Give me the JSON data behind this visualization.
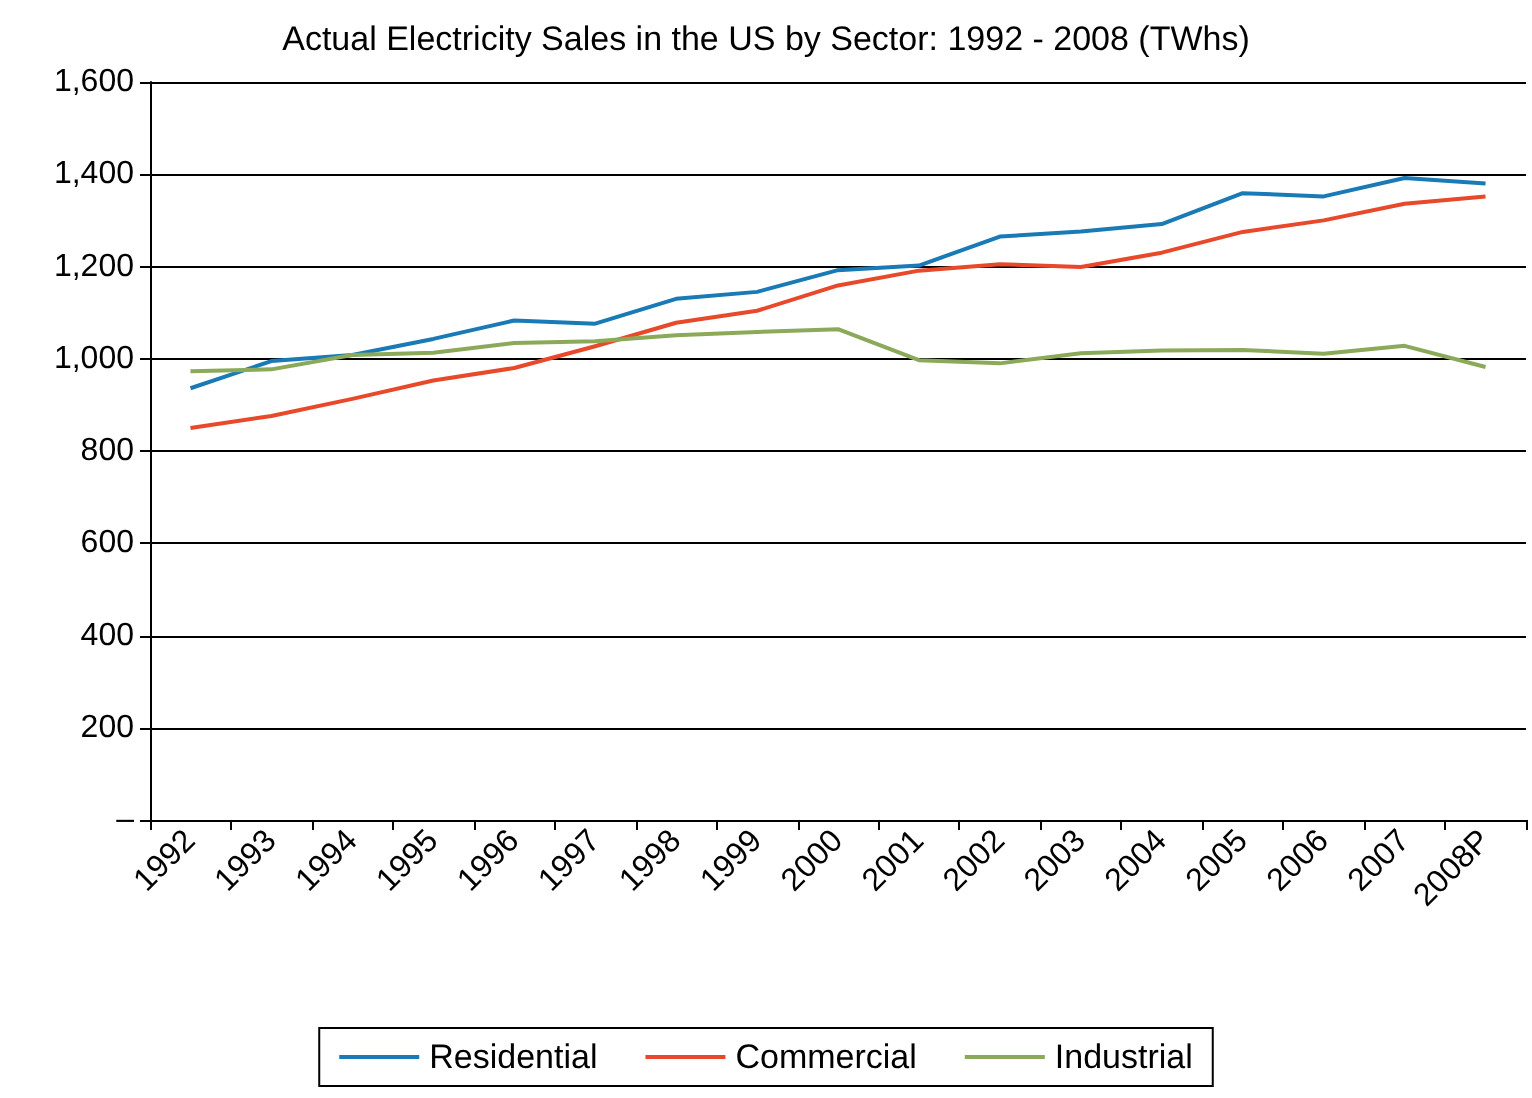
{
  "chart_data": {
    "type": "line",
    "title": "Actual Electricity Sales in the US by Sector: 1992 - 2008 (TWhs)",
    "categories": [
      "1992",
      "1993",
      "1994",
      "1995",
      "1996",
      "1997",
      "1998",
      "1999",
      "2000",
      "2001",
      "2002",
      "2003",
      "2004",
      "2005",
      "2006",
      "2007",
      "2008P"
    ],
    "series": [
      {
        "name": "Residential",
        "color": "#1a7ab5",
        "values": [
          936,
          995,
          1008,
          1043,
          1083,
          1076,
          1130,
          1145,
          1192,
          1202,
          1265,
          1276,
          1292,
          1359,
          1352,
          1392,
          1380
        ]
      },
      {
        "name": "Commercial",
        "color": "#e8492a",
        "values": [
          850,
          876,
          913,
          953,
          980,
          1027,
          1078,
          1104,
          1159,
          1191,
          1205,
          1199,
          1230,
          1275,
          1300,
          1336,
          1352
        ]
      },
      {
        "name": "Industrial",
        "color": "#8aaa5a",
        "values": [
          973,
          977,
          1008,
          1013,
          1034,
          1038,
          1051,
          1058,
          1064,
          997,
          990,
          1012,
          1018,
          1019,
          1011,
          1028,
          982
        ]
      }
    ],
    "ylim": [
      0,
      1600
    ],
    "yticks": [
      {
        "value": 0,
        "label": "–"
      },
      200,
      400,
      600,
      800,
      {
        "value": 1000,
        "label": "1,000"
      },
      {
        "value": 1200,
        "label": "1,200"
      },
      {
        "value": 1400,
        "label": "1,400"
      },
      {
        "value": 1600,
        "label": "1,600"
      }
    ],
    "grid": "y",
    "legend": "bottom",
    "marker": "none",
    "line_style": "solid"
  }
}
